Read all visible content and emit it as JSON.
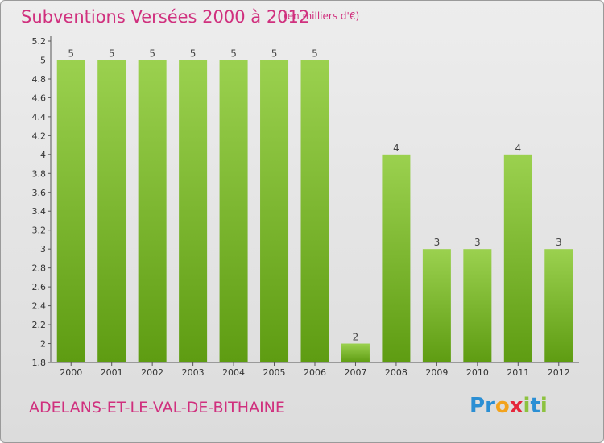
{
  "header": {
    "title": "Subventions Versées 2000 à 2012",
    "subtitle": "(en milliers d'€)"
  },
  "footer": {
    "commune": "ADELANS-ET-LE-VAL-DE-BITHAINE",
    "logo_letters": [
      "P",
      "r",
      "o",
      "x",
      "i",
      "t",
      "i"
    ],
    "logo_colors": [
      "#2b8fd4",
      "#2b8fd4",
      "#f3a31c",
      "#e5263a",
      "#8dc23f",
      "#2b8fd4",
      "#8dc23f"
    ]
  },
  "colors": {
    "bar_top": "#9bd14f",
    "bar_bottom": "#5e9c12",
    "axis": "#555555",
    "title": "#d0307e"
  },
  "chart_data": {
    "type": "bar",
    "title": "Subventions Versées 2000 à 2012",
    "subtitle": "(en milliers d'€)",
    "categories": [
      "2000",
      "2001",
      "2002",
      "2003",
      "2004",
      "2005",
      "2006",
      "2007",
      "2008",
      "2009",
      "2010",
      "2011",
      "2012"
    ],
    "values": [
      5,
      5,
      5,
      5,
      5,
      5,
      5,
      2,
      4,
      3,
      3,
      4,
      3
    ],
    "value_labels": [
      "5",
      "5",
      "5",
      "5",
      "5",
      "5",
      "5",
      "2",
      "4",
      "3",
      "3",
      "4",
      "3"
    ],
    "yticks": [
      "1.8",
      "2",
      "2.2",
      "2.4",
      "2.6",
      "2.8",
      "3",
      "3.2",
      "3.4",
      "3.6",
      "3.8",
      "4",
      "4.2",
      "4.4",
      "4.6",
      "4.8",
      "5",
      "5.2"
    ],
    "ylim": [
      1.8,
      5.2
    ],
    "grid": false,
    "xlabel": "",
    "ylabel": ""
  }
}
